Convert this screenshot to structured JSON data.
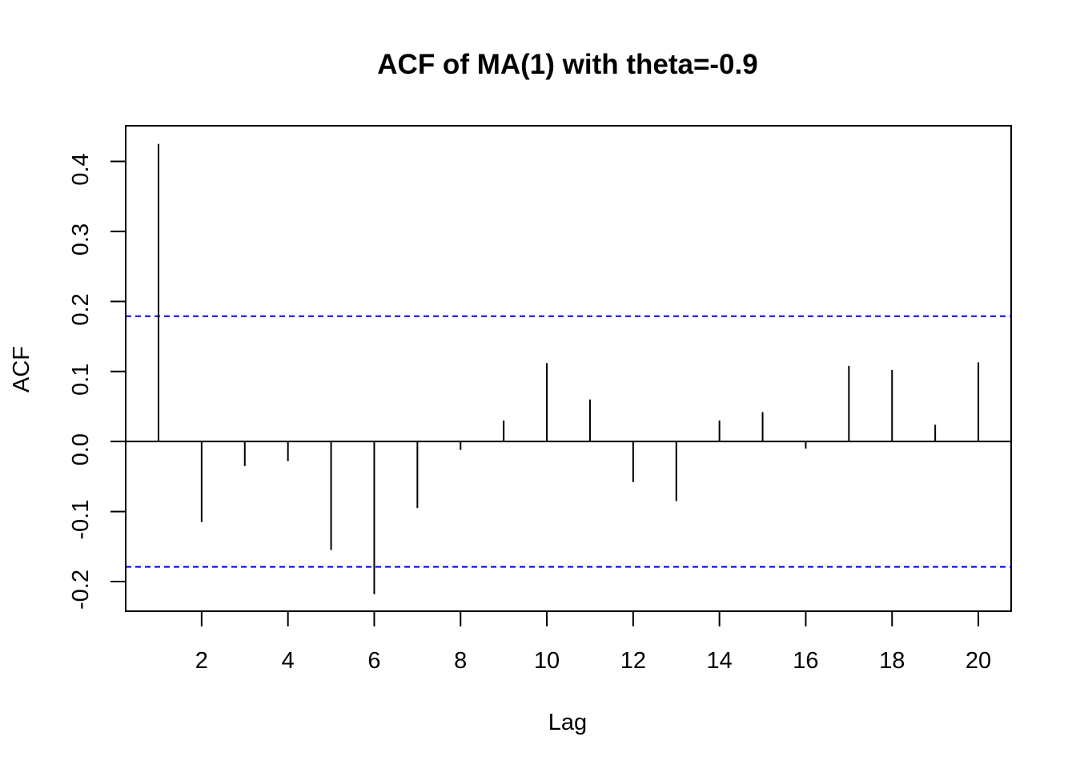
{
  "chart_data": {
    "type": "bar",
    "title": "ACF of MA(1) with theta=-0.9",
    "xlabel": "Lag",
    "ylabel": "ACF",
    "x": [
      1,
      2,
      3,
      4,
      5,
      6,
      7,
      8,
      9,
      10,
      11,
      12,
      13,
      14,
      15,
      16,
      17,
      18,
      19,
      20
    ],
    "values": [
      0.425,
      -0.115,
      -0.035,
      -0.028,
      -0.155,
      -0.218,
      -0.095,
      -0.012,
      0.03,
      0.112,
      0.06,
      -0.058,
      -0.085,
      0.03,
      0.042,
      -0.01,
      0.108,
      0.102,
      0.024,
      0.113
    ],
    "x_ticks": [
      2,
      4,
      6,
      8,
      10,
      12,
      14,
      16,
      18,
      20
    ],
    "x_tick_labels": [
      "2",
      "4",
      "6",
      "8",
      "10",
      "12",
      "14",
      "16",
      "18",
      "20"
    ],
    "y_ticks": [
      -0.2,
      -0.1,
      0.0,
      0.1,
      0.2,
      0.3,
      0.4
    ],
    "y_tick_labels": [
      "-0.2",
      "-0.1",
      "0.0",
      "0.1",
      "0.2",
      "0.3",
      "0.4"
    ],
    "xlim": [
      0.24,
      20.76
    ],
    "ylim": [
      -0.2423,
      0.4509
    ],
    "zero_line": 0,
    "confidence_bounds": [
      0.179,
      -0.179
    ],
    "colors": {
      "bars": "#000000",
      "zero_line": "#000000",
      "confidence_bounds": "#0000ff",
      "frame": "#000000"
    },
    "grid": false,
    "legend": "none"
  }
}
